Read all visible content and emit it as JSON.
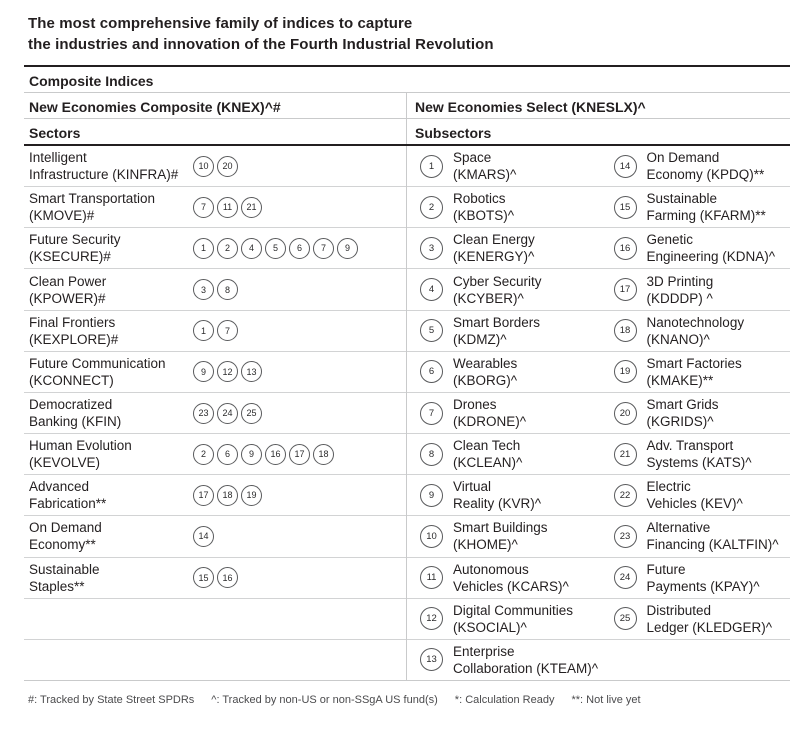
{
  "title": {
    "line1": "The most comprehensive family of indices to capture",
    "line2": "the industries and innovation of the Fourth Industrial Revolution"
  },
  "table": {
    "section_header": "Composite Indices",
    "left": {
      "header": "New Economies Composite (KNEX)^#",
      "subheader": "Sectors",
      "rows": [
        {
          "label": "Intelligent\nInfrastructure (KINFRA)#",
          "circles": [
            10,
            20
          ]
        },
        {
          "label": "Smart Transportation\n(KMOVE)#",
          "circles": [
            7,
            11,
            21
          ]
        },
        {
          "label": "Future Security\n(KSECURE)#",
          "circles": [
            1,
            2,
            4,
            5,
            6,
            7,
            9
          ]
        },
        {
          "label": "Clean Power\n(KPOWER)#",
          "circles": [
            3,
            8
          ]
        },
        {
          "label": "Final Frontiers\n(KEXPLORE)#",
          "circles": [
            1,
            7
          ]
        },
        {
          "label": "Future Communication\n(KCONNECT)",
          "circles": [
            9,
            12,
            13
          ]
        },
        {
          "label": "Democratized\nBanking (KFIN)",
          "circles": [
            23,
            24,
            25
          ]
        },
        {
          "label": "Human Evolution\n(KEVOLVE)",
          "circles": [
            2,
            6,
            9,
            16,
            17,
            18
          ]
        },
        {
          "label": "Advanced\nFabrication**",
          "circles": [
            17,
            18,
            19
          ]
        },
        {
          "label": "On Demand\nEconomy**",
          "circles": [
            14
          ]
        },
        {
          "label": "Sustainable\nStaples**",
          "circles": [
            15,
            16
          ]
        },
        {
          "label": "",
          "circles": []
        },
        {
          "label": "",
          "circles": []
        }
      ]
    },
    "right": {
      "header": "New Economies Select (KNESLX)^",
      "subheader": "Subsectors",
      "rows": [
        {
          "col1": {
            "num": 1,
            "label": "Space\n(KMARS)^"
          },
          "col2": {
            "num": 14,
            "label": "On Demand\nEconomy (KPDQ)**"
          }
        },
        {
          "col1": {
            "num": 2,
            "label": "Robotics\n(KBOTS)^"
          },
          "col2": {
            "num": 15,
            "label": "Sustainable\nFarming (KFARM)**"
          }
        },
        {
          "col1": {
            "num": 3,
            "label": "Clean Energy\n(KENERGY)^"
          },
          "col2": {
            "num": 16,
            "label": "Genetic\nEngineering (KDNA)^"
          }
        },
        {
          "col1": {
            "num": 4,
            "label": "Cyber Security\n(KCYBER)^"
          },
          "col2": {
            "num": 17,
            "label": "3D Printing\n(KDDDP) ^"
          }
        },
        {
          "col1": {
            "num": 5,
            "label": "Smart Borders\n(KDMZ)^"
          },
          "col2": {
            "num": 18,
            "label": "Nanotechnology\n(KNANO)^"
          }
        },
        {
          "col1": {
            "num": 6,
            "label": "Wearables\n(KBORG)^"
          },
          "col2": {
            "num": 19,
            "label": "Smart Factories\n(KMAKE)**"
          }
        },
        {
          "col1": {
            "num": 7,
            "label": "Drones\n(KDRONE)^"
          },
          "col2": {
            "num": 20,
            "label": "Smart Grids\n(KGRIDS)^"
          }
        },
        {
          "col1": {
            "num": 8,
            "label": "Clean Tech\n(KCLEAN)^"
          },
          "col2": {
            "num": 21,
            "label": "Adv. Transport\nSystems (KATS)^"
          }
        },
        {
          "col1": {
            "num": 9,
            "label": "Virtual\nReality (KVR)^"
          },
          "col2": {
            "num": 22,
            "label": "Electric\nVehicles (KEV)^"
          }
        },
        {
          "col1": {
            "num": 10,
            "label": "Smart Buildings\n(KHOME)^"
          },
          "col2": {
            "num": 23,
            "label": "Alternative\nFinancing (KALTFIN)^"
          }
        },
        {
          "col1": {
            "num": 11,
            "label": "Autonomous\nVehicles (KCARS)^"
          },
          "col2": {
            "num": 24,
            "label": "Future\nPayments (KPAY)^"
          }
        },
        {
          "col1": {
            "num": 12,
            "label": "Digital Communities\n(KSOCIAL)^"
          },
          "col2": {
            "num": 25,
            "label": "Distributed\nLedger (KLEDGER)^"
          }
        },
        {
          "col1": {
            "num": 13,
            "label": "Enterprise\nCollaboration (KTEAM)^"
          },
          "col2": null
        }
      ]
    }
  },
  "footnotes": [
    "#: Tracked by State Street SPDRs",
    "^: Tracked by non-US or non-SSgA US fund(s)",
    "*: Calculation Ready",
    "**: Not live yet"
  ],
  "colors": {
    "text": "#231f20",
    "thin_rule": "#c9cacb",
    "thick_rule": "#231f20",
    "circle_border": "#5a5b5d",
    "footnote_text": "#4b4b4d"
  }
}
